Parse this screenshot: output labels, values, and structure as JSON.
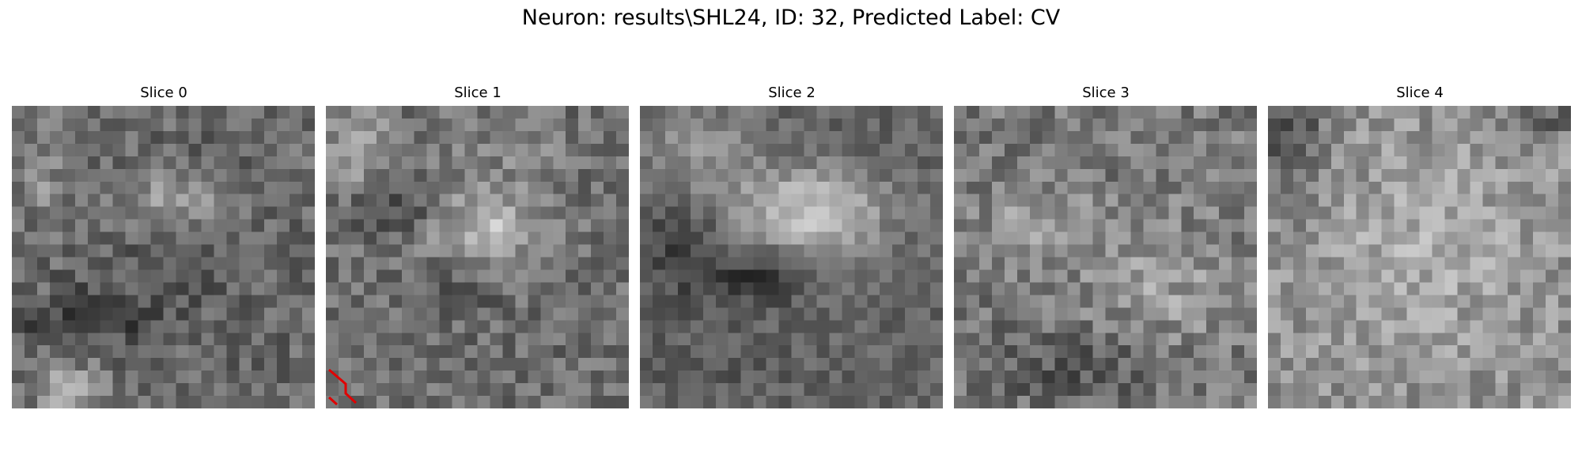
{
  "figure": {
    "title": "Neuron: results\\SHL24, ID: 32, Predicted Label: CV"
  },
  "slices": [
    {
      "title": "Slice 0"
    },
    {
      "title": "Slice 1"
    },
    {
      "title": "Slice 2"
    },
    {
      "title": "Slice 3"
    },
    {
      "title": "Slice 4"
    }
  ]
}
